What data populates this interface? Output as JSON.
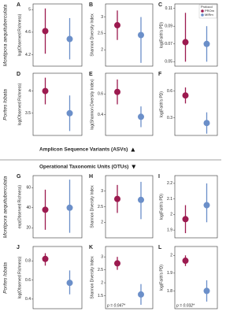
{
  "legend": {
    "title": "Protocol",
    "entries": [
      {
        "name": "PROm",
        "color": "#9c1a4f"
      },
      {
        "name": "MIRm",
        "color": "#6b8fc9"
      }
    ]
  },
  "sections": [
    {
      "caption": "Amplicon Sequence Variants (ASVs)",
      "row_labels": [
        "Montipora aequituberculata",
        "Porites lobata"
      ]
    },
    {
      "caption": "Operational Taxonomic Units (OTUs)",
      "row_labels": [
        "Montipora aequituberculata",
        "Porites lobata"
      ]
    }
  ],
  "chart_data": [
    {
      "type": "errorbar",
      "label": "A",
      "ylabel": "log(Observed Richness)",
      "ylim": [
        4.0,
        5.1
      ],
      "yticks": [
        4.2,
        4.6,
        5.0
      ],
      "series": [
        {
          "color": "#9c1a4f",
          "values": [
            4.62
          ],
          "lower": [
            4.22
          ],
          "upper": [
            5.02
          ]
        },
        {
          "color": "#6b8fc9",
          "values": [
            4.48
          ],
          "lower": [
            4.12
          ],
          "upper": [
            4.85
          ]
        }
      ]
    },
    {
      "type": "errorbar",
      "label": "B",
      "ylabel": "Shannon Diversity Index",
      "ylim": [
        1.5,
        3.4
      ],
      "yticks": [
        2.0,
        2.5,
        3.0
      ],
      "series": [
        {
          "color": "#9c1a4f",
          "values": [
            2.75
          ],
          "lower": [
            2.3
          ],
          "upper": [
            3.2
          ]
        },
        {
          "color": "#6b8fc9",
          "values": [
            2.45
          ],
          "lower": [
            1.6
          ],
          "upper": [
            3.0
          ]
        }
      ]
    },
    {
      "type": "errorbar",
      "label": "C",
      "ylabel": "log(Faith's PD)",
      "ylim": [
        0.045,
        0.115
      ],
      "yticks": [
        0.05,
        0.07,
        0.09,
        0.11
      ],
      "show_legend": true,
      "series": [
        {
          "color": "#9c1a4f",
          "values": [
            0.072
          ],
          "lower": [
            0.05
          ],
          "upper": [
            0.105
          ]
        },
        {
          "color": "#6b8fc9",
          "values": [
            0.07
          ],
          "lower": [
            0.05
          ],
          "upper": [
            0.09
          ]
        }
      ]
    },
    {
      "type": "errorbar",
      "label": "D",
      "ylabel": "log(Observed Richness)",
      "ylim": [
        3.0,
        4.4
      ],
      "yticks": [
        3.5,
        4.0
      ],
      "series": [
        {
          "color": "#9c1a4f",
          "values": [
            4.0
          ],
          "lower": [
            3.7
          ],
          "upper": [
            4.3
          ]
        },
        {
          "color": "#6b8fc9",
          "values": [
            3.5
          ],
          "lower": [
            3.1
          ],
          "upper": [
            3.9
          ]
        }
      ]
    },
    {
      "type": "errorbar",
      "label": "E",
      "ylabel": "log(Shannon Diversity Index)",
      "ylim": [
        0.2,
        0.8
      ],
      "yticks": [
        0.4,
        0.6
      ],
      "series": [
        {
          "color": "#9c1a4f",
          "values": [
            0.62
          ],
          "lower": [
            0.5
          ],
          "upper": [
            0.74
          ]
        },
        {
          "color": "#6b8fc9",
          "values": [
            0.38
          ],
          "lower": [
            0.28
          ],
          "upper": [
            0.48
          ]
        }
      ]
    },
    {
      "type": "errorbar",
      "label": "F",
      "ylabel": "log(Faith's PD)",
      "ylim": [
        0.1,
        0.8
      ],
      "yticks": [
        0.3,
        0.6
      ],
      "series": [
        {
          "color": "#9c1a4f",
          "values": [
            0.55
          ],
          "lower": [
            0.46
          ],
          "upper": [
            0.64
          ]
        },
        {
          "color": "#6b8fc9",
          "values": [
            0.24
          ],
          "lower": [
            0.12
          ],
          "upper": [
            0.36
          ]
        }
      ]
    },
    {
      "type": "errorbar",
      "label": "G",
      "ylabel": "exp(Observed Richness)",
      "ylim": [
        10,
        72
      ],
      "yticks": [
        20,
        40,
        60
      ],
      "series": [
        {
          "color": "#9c1a4f",
          "values": [
            38
          ],
          "lower": [
            18
          ],
          "upper": [
            58
          ]
        },
        {
          "color": "#6b8fc9",
          "values": [
            40
          ],
          "lower": [
            15
          ],
          "upper": [
            68
          ]
        }
      ]
    },
    {
      "type": "errorbar",
      "label": "H",
      "ylabel": "Shannon Diversity Index",
      "ylim": [
        1.5,
        3.5
      ],
      "yticks": [
        2.0,
        2.5,
        3.0
      ],
      "series": [
        {
          "color": "#9c1a4f",
          "values": [
            2.75
          ],
          "lower": [
            2.3
          ],
          "upper": [
            3.2
          ]
        },
        {
          "color": "#6b8fc9",
          "values": [
            2.72
          ],
          "lower": [
            2.1
          ],
          "upper": [
            3.3
          ]
        }
      ]
    },
    {
      "type": "errorbar",
      "label": "I",
      "ylabel": "log(Faith's PD)",
      "ylim": [
        1.85,
        2.25
      ],
      "yticks": [
        1.9,
        2.0,
        2.1,
        2.2
      ],
      "series": [
        {
          "color": "#9c1a4f",
          "values": [
            1.97
          ],
          "lower": [
            1.88
          ],
          "upper": [
            2.06
          ]
        },
        {
          "color": "#6b8fc9",
          "values": [
            2.06
          ],
          "lower": [
            1.95
          ],
          "upper": [
            2.2
          ]
        }
      ]
    },
    {
      "type": "errorbar",
      "label": "J",
      "ylabel": "log(Observed Richness)",
      "ylim": [
        0.3,
        0.95
      ],
      "yticks": [
        0.4,
        0.6,
        0.8
      ],
      "series": [
        {
          "color": "#9c1a4f",
          "values": [
            0.82
          ],
          "lower": [
            0.75
          ],
          "upper": [
            0.88
          ]
        },
        {
          "color": "#6b8fc9",
          "values": [
            0.57
          ],
          "lower": [
            0.45
          ],
          "upper": [
            0.7
          ]
        }
      ]
    },
    {
      "type": "errorbar",
      "label": "K",
      "ylabel": "Shannon Diversity Index",
      "ylim": [
        1.0,
        3.4
      ],
      "yticks": [
        1.5,
        2.0,
        2.5,
        3.0
      ],
      "annotation": "p = 0.047*",
      "series": [
        {
          "color": "#9c1a4f",
          "values": [
            2.75
          ],
          "lower": [
            2.5
          ],
          "upper": [
            3.0
          ]
        },
        {
          "color": "#6b8fc9",
          "values": [
            1.55
          ],
          "lower": [
            1.15
          ],
          "upper": [
            1.95
          ]
        }
      ]
    },
    {
      "type": "errorbar",
      "label": "L",
      "ylabel": "log(Faith's PD)",
      "ylim": [
        1.7,
        2.05
      ],
      "yticks": [
        1.8,
        1.9,
        2.0
      ],
      "annotation": "p = 0.032*",
      "series": [
        {
          "color": "#9c1a4f",
          "values": [
            1.97
          ],
          "lower": [
            1.94
          ],
          "upper": [
            2.0
          ]
        },
        {
          "color": "#6b8fc9",
          "values": [
            1.8
          ],
          "lower": [
            1.74
          ],
          "upper": [
            1.86
          ]
        }
      ]
    }
  ]
}
